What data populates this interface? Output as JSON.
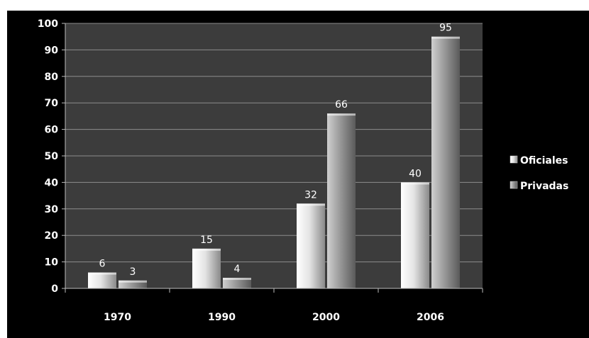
{
  "chart_data": {
    "type": "bar",
    "title": "",
    "xlabel": "",
    "ylabel": "",
    "categories": [
      "1970",
      "1990",
      "2000",
      "2006"
    ],
    "series": [
      {
        "name": "Oficiales",
        "values": [
          6,
          15,
          32,
          40
        ],
        "color": "#e0e0e0"
      },
      {
        "name": "Privadas",
        "values": [
          3,
          4,
          66,
          95
        ],
        "color": "#9a9a9a"
      }
    ],
    "ylim": [
      0,
      100
    ],
    "yticks": [
      0,
      10,
      20,
      30,
      40,
      50,
      60,
      70,
      80,
      90,
      100
    ],
    "grid": true,
    "legend": "right",
    "plot_background": "#3c3c3c",
    "background": "#000000"
  }
}
